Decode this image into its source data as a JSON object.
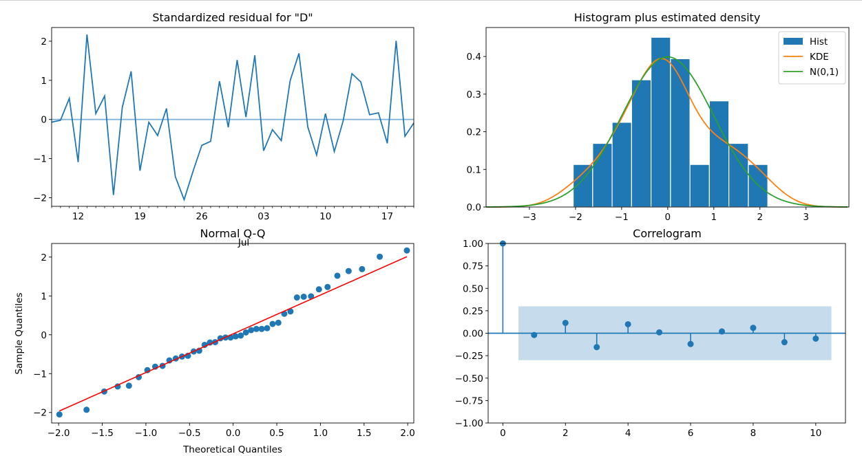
{
  "chart_data": [
    {
      "type": "line",
      "title": "Standardized residual for \"D\"",
      "x": [
        "06-09",
        "06-10",
        "06-11",
        "06-12",
        "06-13",
        "06-14",
        "06-15",
        "06-16",
        "06-17",
        "06-18",
        "06-19",
        "06-20",
        "06-21",
        "06-22",
        "06-23",
        "06-24",
        "06-25",
        "06-26",
        "06-27",
        "06-28",
        "06-29",
        "06-30",
        "07-01",
        "07-02",
        "07-03",
        "07-04",
        "07-05",
        "07-06",
        "07-07",
        "07-08",
        "07-09",
        "07-10",
        "07-11",
        "07-12",
        "07-13",
        "07-14",
        "07-15",
        "07-16",
        "07-17",
        "07-18",
        "07-19",
        "07-20"
      ],
      "values": [
        -0.07,
        -0.02,
        0.54,
        -1.09,
        2.17,
        0.15,
        0.6,
        -1.93,
        0.31,
        1.23,
        -1.31,
        -0.07,
        -0.41,
        0.28,
        -1.46,
        -2.05,
        -1.33,
        -0.66,
        -0.56,
        0.98,
        -0.2,
        1.52,
        0.06,
        1.64,
        -0.8,
        -0.26,
        -0.54,
        0.99,
        1.69,
        -0.19,
        -0.91,
        0.15,
        -0.82,
        -0.04,
        1.17,
        0.96,
        0.12,
        0.17,
        -0.61,
        2.01,
        -0.43,
        -0.09
      ],
      "xticks": [
        {
          "label": "12",
          "day": 3
        },
        {
          "label": "19",
          "day": 10
        },
        {
          "label": "26",
          "day": 17
        },
        {
          "label": "03",
          "day": 24
        },
        {
          "label": "10",
          "day": 31
        },
        {
          "label": "17",
          "day": 38
        }
      ],
      "xlabel_month": "Jul",
      "yticks": [
        "−2",
        "−1",
        "0",
        "1",
        "2"
      ],
      "ylim": [
        -2.22,
        2.35
      ],
      "reference_line": 0,
      "color": "#1f77b4"
    },
    {
      "type": "bar",
      "title": "Histogram plus estimated density",
      "bin_edges": [
        -2.05,
        -1.628,
        -1.206,
        -0.784,
        -0.362,
        0.06,
        0.482,
        0.904,
        1.326,
        1.748,
        2.17
      ],
      "values": [
        0.113,
        0.169,
        0.225,
        0.338,
        0.451,
        0.394,
        0.113,
        0.282,
        0.169,
        0.113
      ],
      "xlim": [
        -3.94,
        3.93
      ],
      "ylim": [
        0,
        0.477
      ],
      "xticks": [
        "−3",
        "−2",
        "−1",
        "0",
        "1",
        "2",
        "3"
      ],
      "yticks": [
        "0.0",
        "0.1",
        "0.2",
        "0.3",
        "0.4"
      ],
      "legend": {
        "placement": "top-right",
        "entries": [
          "Hist",
          "KDE",
          "N(0,1)"
        ]
      },
      "colors": {
        "hist": "#1f77b4",
        "kde": "#ff7f0e",
        "norm": "#2ca02c"
      }
    },
    {
      "type": "scatter",
      "title": "Normal Q-Q",
      "xlabel": "Theoretical Quantiles",
      "ylabel": "Sample Quantiles",
      "theoretical": [
        -1.991,
        -1.68,
        -1.477,
        -1.323,
        -1.194,
        -1.082,
        -0.983,
        -0.893,
        -0.809,
        -0.731,
        -0.657,
        -0.586,
        -0.518,
        -0.452,
        -0.389,
        -0.327,
        -0.266,
        -0.206,
        -0.146,
        -0.087,
        -0.029,
        0.029,
        0.087,
        0.146,
        0.206,
        0.266,
        0.327,
        0.389,
        0.452,
        0.518,
        0.586,
        0.657,
        0.731,
        0.809,
        0.893,
        0.983,
        1.082,
        1.194,
        1.323,
        1.477,
        1.68,
        1.991
      ],
      "sample": [
        -2.05,
        -1.93,
        -1.46,
        -1.33,
        -1.31,
        -1.09,
        -0.91,
        -0.82,
        -0.8,
        -0.66,
        -0.61,
        -0.56,
        -0.54,
        -0.43,
        -0.41,
        -0.26,
        -0.2,
        -0.19,
        -0.09,
        -0.07,
        -0.07,
        -0.04,
        -0.02,
        0.06,
        0.12,
        0.15,
        0.15,
        0.17,
        0.28,
        0.31,
        0.54,
        0.6,
        0.96,
        0.98,
        0.99,
        1.17,
        1.23,
        1.52,
        1.64,
        1.69,
        2.01,
        2.17
      ],
      "fit_line": [
        [
          -1.991,
          -1.96
        ],
        [
          1.991,
          2.01
        ]
      ],
      "xlim": [
        -2.08,
        2.07
      ],
      "ylim": [
        -2.27,
        2.35
      ],
      "xticks": [
        "−2.0",
        "−1.5",
        "−1.0",
        "−0.5",
        "0.0",
        "0.5",
        "1.0",
        "1.5",
        "2.0"
      ],
      "yticks": [
        "−2",
        "−1",
        "0",
        "1",
        "2"
      ],
      "colors": {
        "points": "#1f77b4",
        "line": "#ff0000"
      }
    },
    {
      "type": "bar",
      "title": "Correlogram",
      "lags": [
        0,
        1,
        2,
        3,
        4,
        5,
        6,
        7,
        8,
        9,
        10
      ],
      "values": [
        1.0,
        -0.02,
        0.115,
        -0.155,
        0.1,
        0.01,
        -0.12,
        0.02,
        0.06,
        -0.1,
        -0.06
      ],
      "confidence_band": 0.3,
      "xlim": [
        -0.47,
        10.95
      ],
      "ylim": [
        -1,
        1
      ],
      "xticks": [
        "0",
        "2",
        "4",
        "6",
        "8",
        "10"
      ],
      "yticks": [
        "−1.00",
        "−0.75",
        "−0.50",
        "−0.25",
        "0.00",
        "0.25",
        "0.50",
        "0.75",
        "1.00"
      ],
      "colors": {
        "stem": "#1f77b4",
        "band": "#c6dbec"
      }
    }
  ]
}
